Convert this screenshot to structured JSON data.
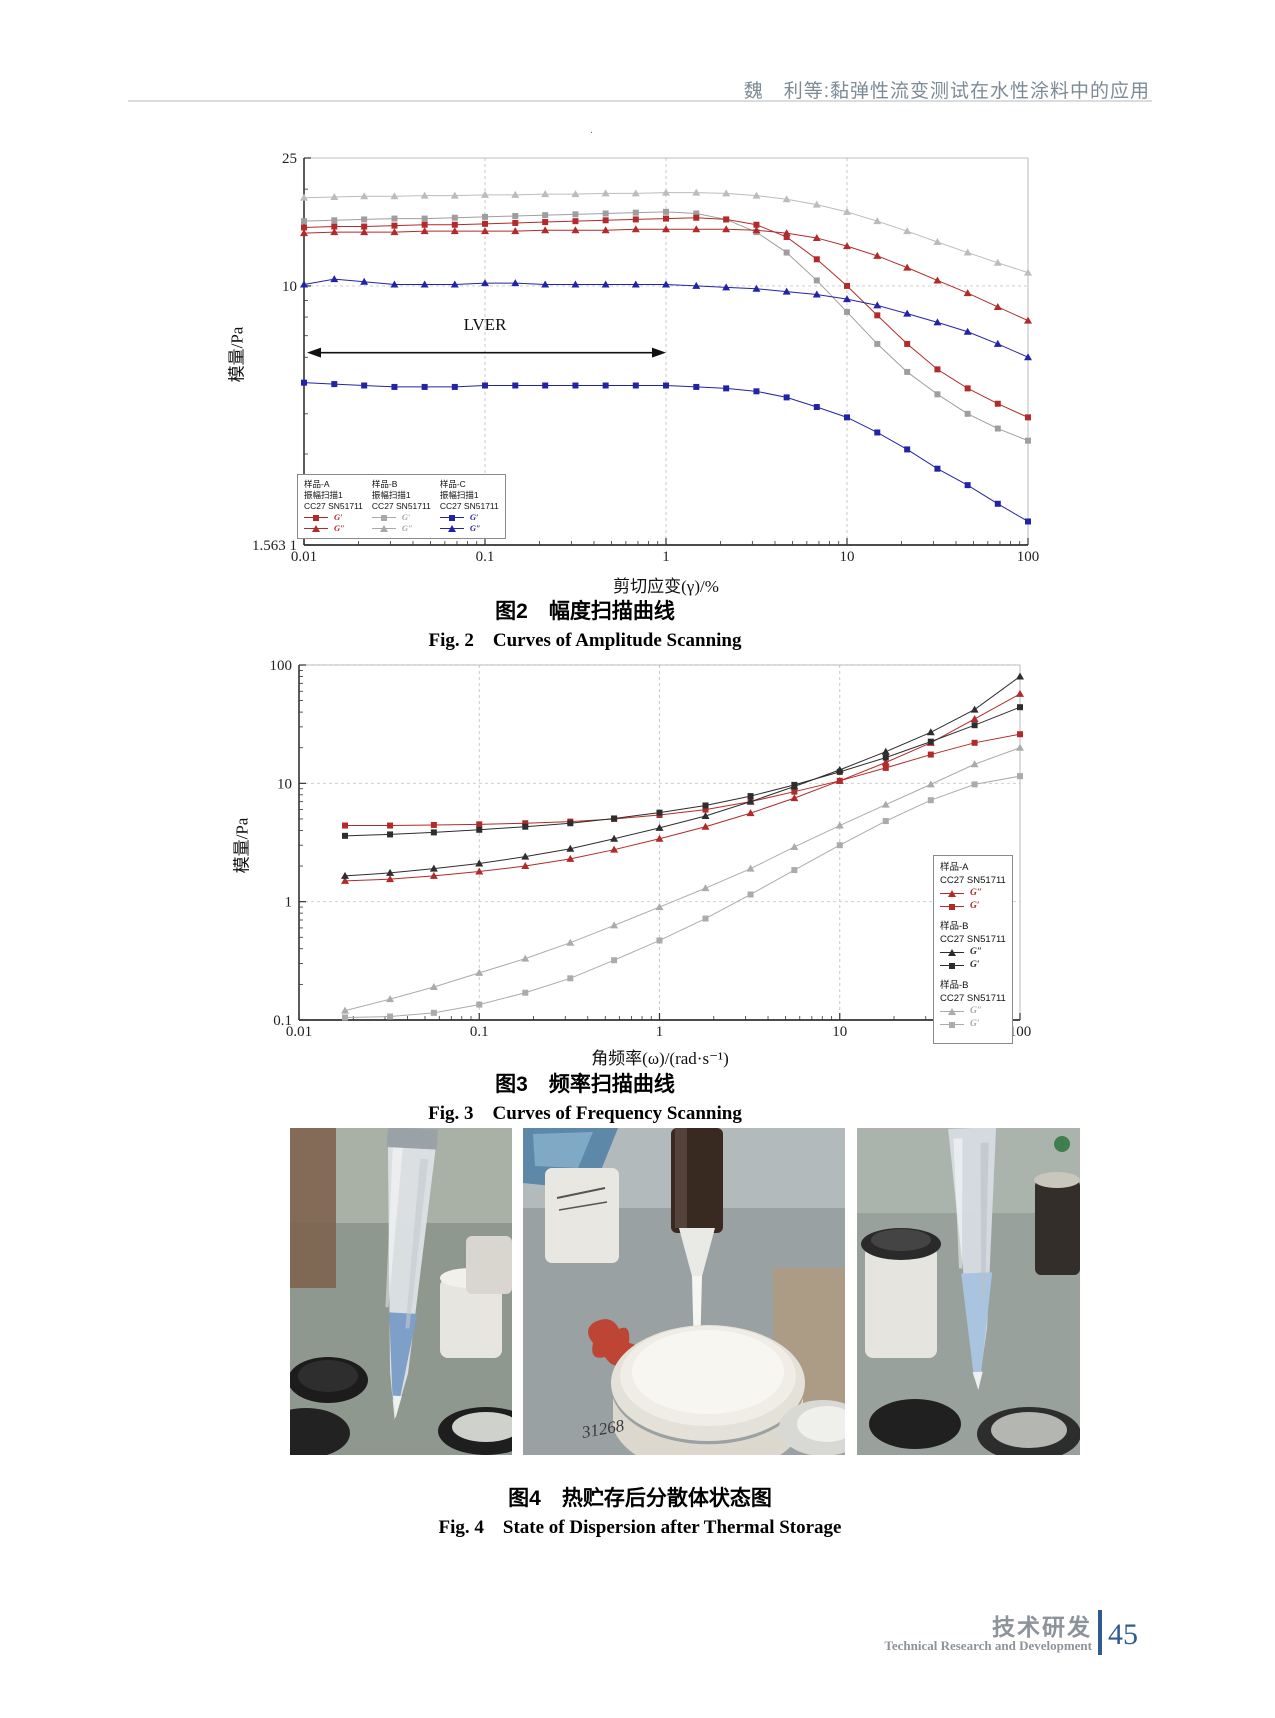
{
  "header": {
    "running_title": "魏　利等:黏弹性流变测试在水性涂料中的应用"
  },
  "artifact": ".",
  "figure2": {
    "caption_cn": "图2　幅度扫描曲线",
    "caption_en": "Fig. 2　Curves of Amplitude Scanning"
  },
  "figure3": {
    "caption_cn": "图3　频率扫描曲线",
    "caption_en": "Fig. 3　Curves of Frequency Scanning"
  },
  "figure4": {
    "caption_cn": "图4　热贮存后分散体状态图",
    "caption_en": "Fig. 4　State of Dispersion after Thermal Storage",
    "photo_note": "31268"
  },
  "footer": {
    "section_cn": "技术研发",
    "section_en": "Technical Research and Development",
    "page_number": "45",
    "accent_color": "#2f5b8f"
  },
  "chart_data": [
    {
      "type": "line",
      "name": "amplitude-sweep",
      "xlabel": "剪切应变(γ)/%",
      "ylabel": "模量/Pa",
      "xscale": "log",
      "yscale": "log",
      "xlim": [
        0.01,
        100
      ],
      "ylim": [
        1.5631,
        25
      ],
      "xticks": [
        {
          "v": 0.01,
          "label": "0.01"
        },
        {
          "v": 0.1,
          "label": "0.1"
        },
        {
          "v": 1,
          "label": "1"
        },
        {
          "v": 10,
          "label": "10"
        },
        {
          "v": 100,
          "label": "100"
        }
      ],
      "yticks": [
        {
          "v": 25,
          "label": "25"
        },
        {
          "v": 10,
          "label": "10"
        },
        {
          "v": 1.5631,
          "label": "1.563 1"
        }
      ],
      "grid_x": [
        0.1,
        1,
        10
      ],
      "grid_y": [
        10
      ],
      "annotation": {
        "label": "LVER",
        "x_from": 0.01,
        "x_to": 1.0,
        "y": 6.2,
        "text_x": 0.1,
        "text_y": 7.3
      },
      "x": [
        0.01,
        0.0147,
        0.0215,
        0.0316,
        0.0464,
        0.0681,
        0.1,
        0.147,
        0.215,
        0.316,
        0.464,
        0.681,
        1,
        1.47,
        2.15,
        3.16,
        4.64,
        6.81,
        10,
        14.7,
        21.5,
        31.6,
        46.4,
        68.1,
        100
      ],
      "series": [
        {
          "name": "样品-B G″",
          "marker": "triangle",
          "color": "#bcbcbc",
          "values": [
            18.8,
            18.9,
            19.0,
            19.0,
            19.1,
            19.1,
            19.2,
            19.2,
            19.3,
            19.3,
            19.4,
            19.4,
            19.5,
            19.5,
            19.4,
            19.1,
            18.6,
            17.9,
            17.0,
            15.9,
            14.8,
            13.7,
            12.7,
            11.8,
            11.0
          ]
        },
        {
          "name": "样品-B G′",
          "marker": "square",
          "color": "#9e9e9e",
          "values": [
            15.9,
            16.0,
            16.1,
            16.2,
            16.2,
            16.3,
            16.4,
            16.5,
            16.6,
            16.7,
            16.8,
            16.9,
            17.0,
            16.8,
            16.1,
            14.7,
            12.7,
            10.4,
            8.3,
            6.6,
            5.4,
            4.6,
            4.0,
            3.6,
            3.3
          ]
        },
        {
          "name": "样品-A G′",
          "marker": "square",
          "color": "#b22a2a",
          "values": [
            15.2,
            15.3,
            15.3,
            15.4,
            15.5,
            15.5,
            15.6,
            15.7,
            15.8,
            15.9,
            16.0,
            16.1,
            16.2,
            16.3,
            16.1,
            15.5,
            14.2,
            12.1,
            10.0,
            8.1,
            6.6,
            5.5,
            4.8,
            4.3,
            3.9
          ]
        },
        {
          "name": "样品-A G″",
          "marker": "triangle",
          "color": "#b22a2a",
          "values": [
            14.6,
            14.7,
            14.7,
            14.7,
            14.8,
            14.8,
            14.8,
            14.8,
            14.9,
            14.9,
            14.9,
            15.0,
            15.0,
            15.0,
            15.0,
            14.9,
            14.6,
            14.1,
            13.3,
            12.4,
            11.4,
            10.4,
            9.5,
            8.6,
            7.8
          ]
        },
        {
          "name": "样品-C G″",
          "marker": "triangle",
          "color": "#2323a8",
          "values": [
            10.1,
            10.5,
            10.3,
            10.1,
            10.1,
            10.1,
            10.2,
            10.2,
            10.1,
            10.1,
            10.1,
            10.1,
            10.1,
            10.0,
            9.9,
            9.8,
            9.6,
            9.4,
            9.1,
            8.7,
            8.2,
            7.7,
            7.2,
            6.6,
            6.0
          ]
        },
        {
          "name": "样品-C G′",
          "marker": "square",
          "color": "#2323a8",
          "values": [
            5.0,
            4.95,
            4.9,
            4.85,
            4.85,
            4.85,
            4.9,
            4.9,
            4.9,
            4.9,
            4.9,
            4.9,
            4.9,
            4.85,
            4.8,
            4.7,
            4.5,
            4.2,
            3.9,
            3.5,
            3.1,
            2.7,
            2.4,
            2.1,
            1.85
          ]
        }
      ],
      "legend": {
        "position": "bottom-left",
        "groups": [
          {
            "sample": "样品-A",
            "mode": "振幅扫描1",
            "device": "CC27 SN51711",
            "color": "#b22a2a",
            "entries": [
              {
                "marker": "square",
                "label": "G′"
              },
              {
                "marker": "triangle",
                "label": "G″"
              }
            ]
          },
          {
            "sample": "样品-B",
            "mode": "振幅扫描1",
            "device": "CC27 SN51711",
            "color": "#a8a8a8",
            "entries": [
              {
                "marker": "square",
                "label": "G′"
              },
              {
                "marker": "triangle",
                "label": "G″"
              }
            ]
          },
          {
            "sample": "样品-C",
            "mode": "振幅扫描1",
            "device": "CC27 SN51711",
            "color": "#2323a8",
            "entries": [
              {
                "marker": "square",
                "label": "G′"
              },
              {
                "marker": "triangle",
                "label": "G″"
              }
            ]
          }
        ]
      }
    },
    {
      "type": "line",
      "name": "frequency-sweep",
      "xlabel": "角频率(ω)/(rad·s⁻¹)",
      "ylabel": "模量/Pa",
      "xscale": "log",
      "yscale": "log",
      "xlim": [
        0.01,
        100
      ],
      "ylim": [
        0.1,
        100
      ],
      "xticks": [
        {
          "v": 0.01,
          "label": "0.01"
        },
        {
          "v": 0.1,
          "label": "0.1"
        },
        {
          "v": 1,
          "label": "1"
        },
        {
          "v": 10,
          "label": "10"
        },
        {
          "v": 100,
          "label": "100"
        }
      ],
      "yticks": [
        {
          "v": 100,
          "label": "100"
        },
        {
          "v": 10,
          "label": "10"
        },
        {
          "v": 1,
          "label": "1"
        },
        {
          "v": 0.1,
          "label": "0.1"
        }
      ],
      "grid_x": [
        0.1,
        1,
        10
      ],
      "grid_y": [
        1,
        10,
        100
      ],
      "x": [
        0.018,
        0.032,
        0.056,
        0.1,
        0.18,
        0.32,
        0.56,
        1,
        1.8,
        3.2,
        5.6,
        10,
        18,
        32,
        56,
        100
      ],
      "series": [
        {
          "name": "样品-B(2) G″",
          "marker": "triangle",
          "color": "#ababab",
          "values": [
            0.12,
            0.15,
            0.19,
            0.25,
            0.33,
            0.45,
            0.63,
            0.9,
            1.3,
            1.9,
            2.9,
            4.4,
            6.6,
            9.8,
            14.5,
            20
          ]
        },
        {
          "name": "样品-B(2) G′",
          "marker": "square",
          "color": "#ababab",
          "values": [
            0.105,
            0.107,
            0.115,
            0.135,
            0.17,
            0.225,
            0.32,
            0.47,
            0.72,
            1.15,
            1.85,
            3.0,
            4.8,
            7.2,
            9.8,
            11.5
          ]
        },
        {
          "name": "样品-A G″",
          "marker": "triangle",
          "color": "#b22a2a",
          "values": [
            1.5,
            1.55,
            1.65,
            1.8,
            2.0,
            2.3,
            2.75,
            3.4,
            4.3,
            5.6,
            7.5,
            10.5,
            15,
            22,
            35,
            57
          ]
        },
        {
          "name": "样品-A G′",
          "marker": "square",
          "color": "#b22a2a",
          "values": [
            4.4,
            4.4,
            4.45,
            4.5,
            4.6,
            4.75,
            5.0,
            5.4,
            6.0,
            7.0,
            8.5,
            10.5,
            13.5,
            17.5,
            22,
            26
          ]
        },
        {
          "name": "样品-B G″",
          "marker": "triangle",
          "color": "#2d2d2d",
          "values": [
            1.65,
            1.75,
            1.9,
            2.1,
            2.4,
            2.8,
            3.4,
            4.2,
            5.3,
            7.0,
            9.4,
            13.0,
            18.5,
            27,
            42,
            80
          ]
        },
        {
          "name": "样品-B G′",
          "marker": "square",
          "color": "#2d2d2d",
          "values": [
            3.6,
            3.7,
            3.85,
            4.05,
            4.3,
            4.6,
            5.05,
            5.65,
            6.5,
            7.8,
            9.7,
            12.5,
            16.5,
            22.5,
            31,
            44
          ]
        }
      ],
      "legend": {
        "position": "right",
        "groups": [
          {
            "sample": "样品-A",
            "device": "CC27 SN51711",
            "color": "#b22a2a",
            "entries": [
              {
                "marker": "triangle",
                "label": "G″"
              },
              {
                "marker": "square",
                "label": "G′"
              }
            ]
          },
          {
            "sample": "样品-B",
            "device": "CC27 SN51711",
            "color": "#2d2d2d",
            "entries": [
              {
                "marker": "triangle",
                "label": "G″"
              },
              {
                "marker": "square",
                "label": "G′"
              }
            ]
          },
          {
            "sample": "样品-B",
            "device": "CC27 SN51711",
            "color": "#ababab",
            "entries": [
              {
                "marker": "triangle",
                "label": "G″"
              },
              {
                "marker": "square",
                "label": "G′"
              }
            ]
          }
        ]
      }
    }
  ]
}
